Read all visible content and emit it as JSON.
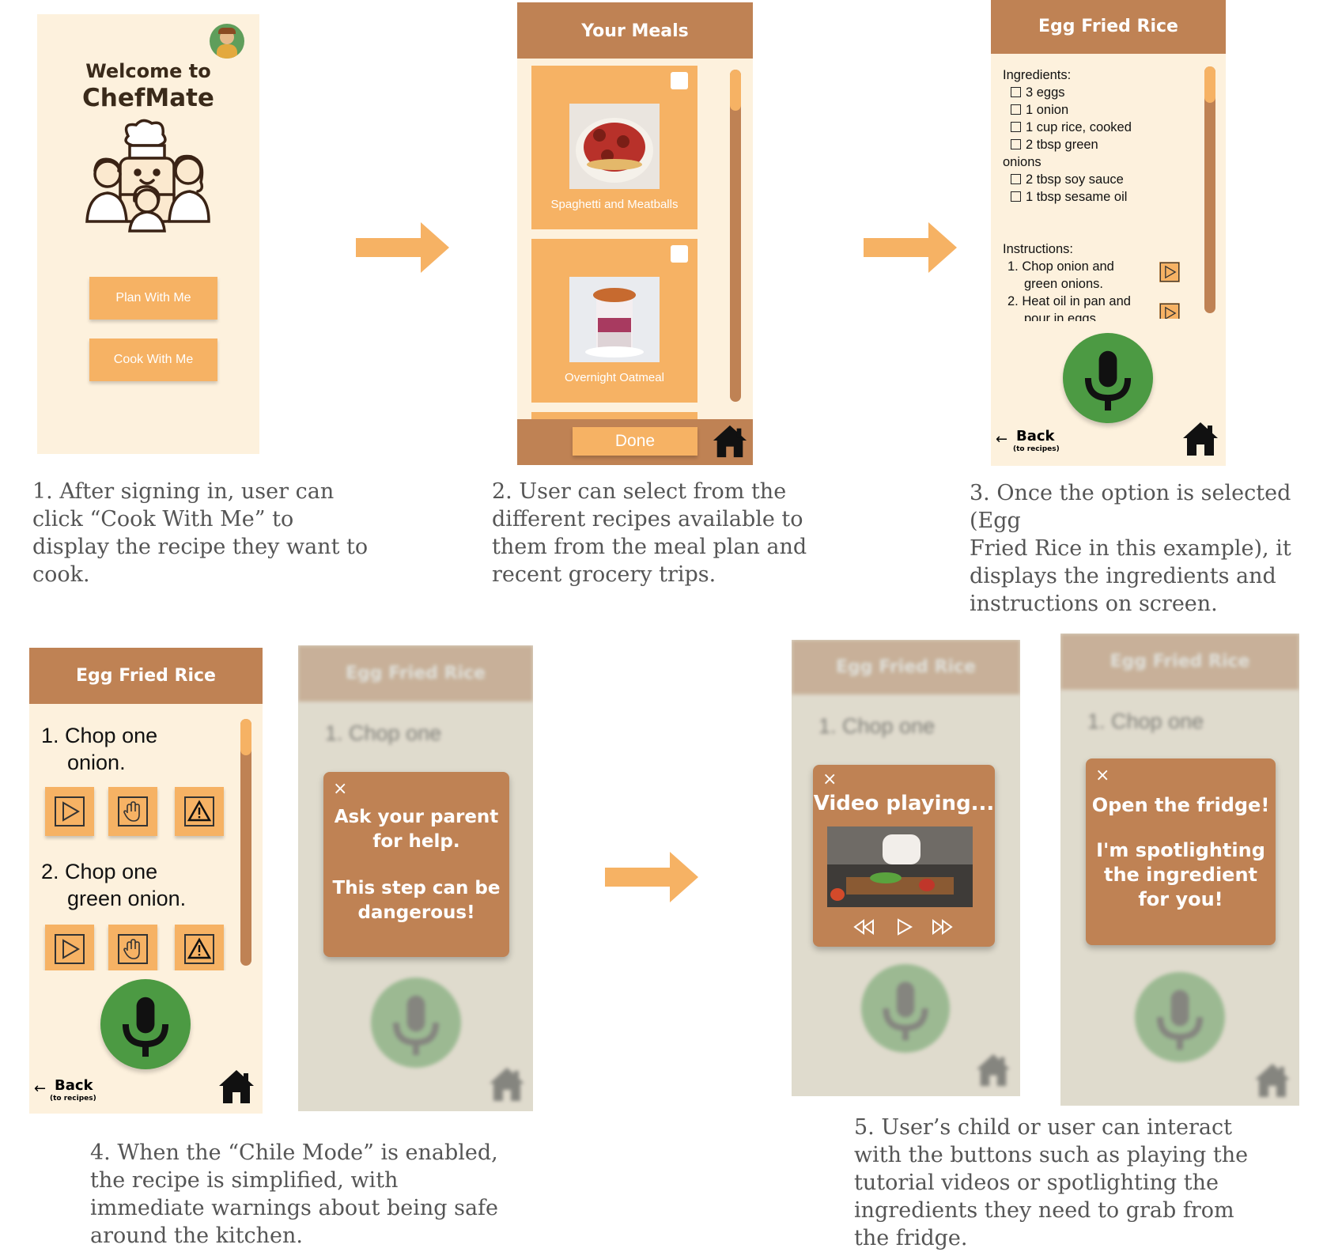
{
  "colors": {
    "header": "#bf8254",
    "accent": "#f6b264",
    "bg": "#fdf1dd",
    "mic": "#4c9a43"
  },
  "screen1": {
    "welcome": "Welcome to",
    "app_name": "ChefMate",
    "plan_btn": "Plan With Me",
    "cook_btn": "Cook With Me"
  },
  "screen2": {
    "title": "Your Meals",
    "meal1": "Spaghetti and Meatballs",
    "meal2": "Overnight Oatmeal",
    "done": "Done"
  },
  "screen3": {
    "title": "Egg Fried Rice",
    "ingredients_label": "Ingredients:",
    "ingredients": [
      "3 eggs",
      "1 onion",
      "1 cup rice, cooked",
      "2 tbsp green",
      "2 tbsp soy sauce",
      "1 tbsp sesame oil"
    ],
    "ingredients_wrap": "onions",
    "instructions_label": "Instructions:",
    "step1a": "1. Chop onion and",
    "step1b": "green onions.",
    "step2a": "2. Heat oil in pan and",
    "step2b": "pour in eggs",
    "back": "Back",
    "back_sub": "(to recipes)"
  },
  "screen4": {
    "title": "Egg Fried Rice",
    "step1a": "1. Chop one",
    "step1b": "onion.",
    "step2a": "2. Chop one",
    "step2b": "green onion.",
    "back": "Back",
    "back_sub": "(to recipes)"
  },
  "popups": {
    "parent_a": "Ask your parent",
    "parent_b": "for help.",
    "parent_c": "This step can be",
    "parent_d": "dangerous!",
    "video": "Video playing...",
    "fridge_a": "Open the fridge!",
    "fridge_b": "I'm spotlighting",
    "fridge_c": "the ingredient",
    "fridge_d": "for you!",
    "close": "×"
  },
  "captions": {
    "c1": [
      "1. After signing in, user can",
      "click “Cook With Me” to",
      "display the recipe they want to",
      "cook."
    ],
    "c2": [
      "2. User can select from the",
      "different recipes available to",
      "them from the meal plan and",
      "recent grocery trips."
    ],
    "c3": [
      "3. Once the option is selected (Egg",
      "Fried Rice in this example), it",
      "displays the ingredients and",
      "instructions on screen."
    ],
    "c4": [
      "4. When the “Chile Mode” is enabled,",
      "the recipe is simplified, with",
      "immediate warnings about being safe",
      "around the kitchen."
    ],
    "c5": [
      "5. User’s child or user can interact",
      "with the buttons such as playing the",
      "tutorial videos or spotlighting the",
      "ingredients they need to grab from",
      "the fridge."
    ]
  }
}
